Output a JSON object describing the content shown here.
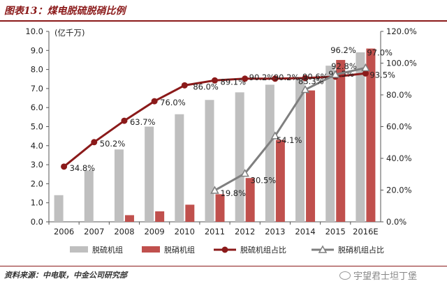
{
  "title": "图表13：煤电脱硫脱硝比例",
  "source": "资料来源：中电联，中金公司研究部",
  "watermark": "宇望君士坦丁堡",
  "colors": {
    "title": "#8b1a1a",
    "desulf_bar": "#bfbfbf",
    "denitr_bar": "#c0504d",
    "desulf_line": "#8b1a1a",
    "denitr_line": "#7f7f7f"
  },
  "chart_data": {
    "type": "bar",
    "categories": [
      "2006",
      "2007",
      "2008",
      "2009",
      "2010",
      "2011",
      "2012",
      "2013",
      "2014",
      "2015",
      "2016E"
    ],
    "unit_label": "(亿千万)",
    "y_left": {
      "min": 0,
      "max": 10,
      "step": 1,
      "ticks": [
        "0.0",
        "1.0",
        "2.0",
        "3.0",
        "4.0",
        "5.0",
        "6.0",
        "7.0",
        "8.0",
        "9.0",
        "10.0"
      ]
    },
    "y_right": {
      "min": 0,
      "max": 120,
      "step": 20,
      "ticks": [
        "0.0%",
        "20.0%",
        "40.0%",
        "60.0%",
        "80.0%",
        "100.0%",
        "120.0%"
      ]
    },
    "series": [
      {
        "name": "脱硫机组",
        "kind": "bar",
        "axis": "left",
        "values": [
          1.4,
          2.7,
          3.8,
          5.0,
          5.65,
          6.4,
          6.8,
          7.2,
          7.6,
          8.2,
          8.9
        ]
      },
      {
        "name": "脱硝机组",
        "kind": "bar",
        "axis": "left",
        "values": [
          null,
          null,
          0.35,
          0.55,
          0.9,
          1.45,
          2.3,
          4.3,
          6.9,
          8.5,
          9.1
        ]
      },
      {
        "name": "脱硫机组占比",
        "kind": "line",
        "axis": "right",
        "values": [
          34.8,
          50.2,
          63.7,
          76.0,
          86.0,
          89.1,
          90.2,
          90.2,
          90.6,
          91.5,
          93.5
        ],
        "labels": [
          "34.8%",
          "50.2%",
          "63.7%",
          "76.0%",
          "86.0%",
          "89.1%",
          "90.2%",
          "90.2%",
          "90.6%",
          "91.5%",
          "93.5%"
        ]
      },
      {
        "name": "脱硝机组占比",
        "kind": "line",
        "axis": "right",
        "values": [
          null,
          null,
          null,
          null,
          null,
          19.8,
          30.5,
          54.1,
          83.3,
          92.8,
          97.0
        ],
        "labels": [
          null,
          null,
          null,
          null,
          null,
          "19.8%",
          "30.5%",
          "54.1%",
          "83.3%",
          "92.8%",
          "97.0%"
        ]
      }
    ],
    "extra_labels": [
      "96.2%"
    ],
    "legend_position": "bottom"
  }
}
